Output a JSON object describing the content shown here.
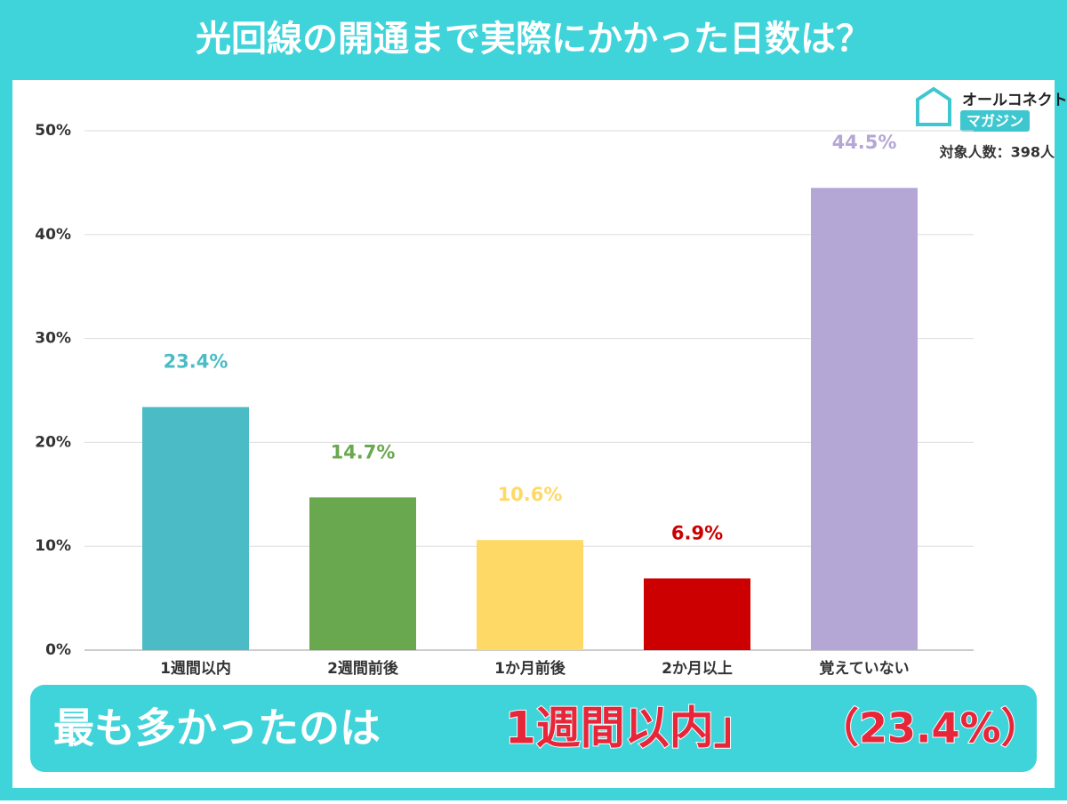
{
  "chart_data": {
    "type": "bar",
    "title": "光回線の開通まで実際にかかった日数は？",
    "categories": [
      "1週間以内",
      "2週間前後",
      "1か月前後",
      "2か月以上",
      "覚えていない"
    ],
    "values": [
      23.4,
      14.7,
      10.6,
      6.9,
      44.5
    ],
    "value_labels": [
      "23.4%",
      "14.7%",
      "10.6%",
      "6.9%",
      "44.5%"
    ],
    "colors": [
      "#4bbcc6",
      "#6aa84f",
      "#ffd966",
      "#cc0000",
      "#b4a7d6"
    ],
    "ylim": [
      0,
      50
    ],
    "yticks": [
      {
        "value": 0,
        "label": "0%"
      },
      {
        "value": 10,
        "label": "10%"
      },
      {
        "value": 20,
        "label": "20%"
      },
      {
        "value": 30,
        "label": "30%"
      },
      {
        "value": 40,
        "label": "40%"
      },
      {
        "value": 50,
        "label": "50%"
      }
    ],
    "grid": true
  },
  "logo": {
    "line1": "オールコネクト",
    "line2": "マガジン"
  },
  "note": "対象人数：398人",
  "banner": {
    "text": "最も多かったのは",
    "highlight": "1週間以内」",
    "percent": "（23.4%）"
  }
}
